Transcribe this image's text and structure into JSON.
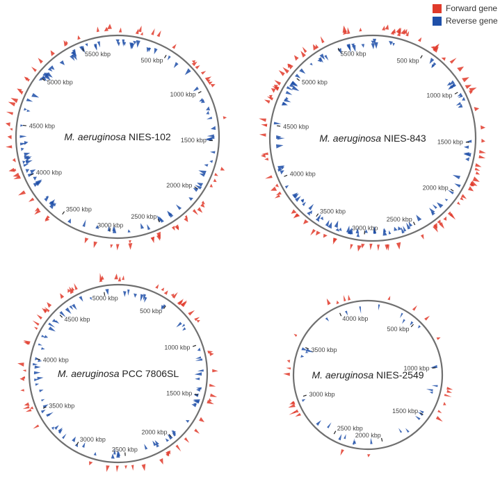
{
  "legend": {
    "forward_label": "Forward gene",
    "reverse_label": "Reverse gene",
    "forward_color": "#e03a2a",
    "reverse_color": "#1f4fa8"
  },
  "ring_color": "#6f6f6f",
  "maps": [
    {
      "species": "M. aeruginosa",
      "strain": "NIES-102",
      "ticks": [
        "500 kbp",
        "1000 kbp",
        "1500 kbp",
        "2000 kbp",
        "2500 kbp",
        "3000 kbp",
        "3500 kbp",
        "4000 kbp",
        "4500 kbp",
        "5000 kbp",
        "5500 kbp"
      ]
    },
    {
      "species": "M. aeruginosa",
      "strain": "NIES-843",
      "ticks": [
        "500 kbp",
        "1000 kbp",
        "1500 kbp",
        "2000 kbp",
        "2500 kbp",
        "3000 kbp",
        "3500 kbp",
        "4000 kbp",
        "4500 kbp",
        "5000 kbp",
        "5500 kbp"
      ]
    },
    {
      "species": "M. aeruginosa",
      "strain": "PCC 7806SL",
      "ticks": [
        "500 kbp",
        "1000 kbp",
        "1500 kbp",
        "2000 kbp",
        "2500 kbp",
        "3000 kbp",
        "3500 kbp",
        "4000 kbp",
        "4500 kbp",
        "5000 kbp"
      ]
    },
    {
      "species": "M. aeruginosa",
      "strain": "NIES-2549",
      "ticks": [
        "500 kbp",
        "1000 kbp",
        "1500 kbp",
        "2000 kbp",
        "2500 kbp",
        "3000 kbp",
        "3500 kbp",
        "4000 kbp"
      ]
    }
  ]
}
